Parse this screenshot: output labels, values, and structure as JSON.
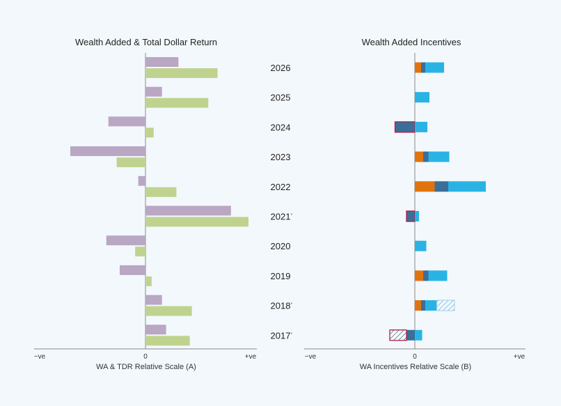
{
  "colors": {
    "background": "#f3f8fc",
    "wealth_added": "#b9a7c4",
    "total_dollar_return": "#bfd38f",
    "incentive_orange": "#e0730d",
    "incentive_dark_blue": "#3a6f9a",
    "incentive_light_blue": "#29b3e4",
    "deferred_hatch": "#6fb7df",
    "negative_outline": "#b01e44"
  },
  "chart_data": [
    {
      "type": "bar",
      "orientation": "horizontal",
      "title": "Wealth Added & Total Dollar Return",
      "xlabel": "WA & TDR Relative Scale (A)",
      "x_tick_labels": [
        "−ve",
        "0",
        "+ve"
      ],
      "xlim": [
        -1.08,
        1.0
      ],
      "categories": [
        "2026",
        "2025",
        "2024",
        "2023",
        "2022",
        "2021",
        "2020",
        "2019",
        "2018",
        "2017"
      ],
      "series": [
        {
          "key": "wealth_added",
          "values": [
            0.32,
            0.16,
            -0.36,
            -0.73,
            -0.07,
            0.83,
            -0.38,
            -0.25,
            0.16,
            0.2
          ]
        },
        {
          "key": "total_dollar_return",
          "values": [
            0.7,
            0.61,
            0.08,
            -0.28,
            0.3,
            1.0,
            -0.1,
            0.06,
            0.45,
            0.43
          ]
        }
      ]
    },
    {
      "type": "bar",
      "orientation": "horizontal",
      "stacked": true,
      "title": "Wealth Added Incentives",
      "xlabel": "WA Incentives Relative Scale (B)",
      "x_tick_labels": [
        "−ve",
        "0",
        "+ve"
      ],
      "xlim": [
        -1.0,
        1.0
      ],
      "categories": [
        "2026",
        "2025",
        "2024",
        "2023",
        "2022",
        "2021",
        "2020",
        "2019",
        "2018",
        "2017"
      ],
      "year_markers": [
        "",
        "",
        "",
        "",
        "",
        "'",
        "",
        "",
        "'",
        "'"
      ],
      "segments": [
        [
          {
            "c": "incentive_orange",
            "v": 0.06
          },
          {
            "c": "incentive_dark_blue",
            "v": 0.04
          },
          {
            "c": "incentive_light_blue",
            "v": 0.18
          }
        ],
        [
          {
            "c": "incentive_light_blue",
            "v": 0.14
          }
        ],
        [
          {
            "c": "incentive_dark_blue",
            "v": -0.19,
            "outline": true
          },
          {
            "c": "incentive_light_blue",
            "v": 0.12
          }
        ],
        [
          {
            "c": "incentive_orange",
            "v": 0.08
          },
          {
            "c": "incentive_dark_blue",
            "v": 0.05
          },
          {
            "c": "incentive_light_blue",
            "v": 0.2
          }
        ],
        [
          {
            "c": "incentive_orange",
            "v": 0.19
          },
          {
            "c": "incentive_dark_blue",
            "v": 0.13
          },
          {
            "c": "incentive_light_blue",
            "v": 0.36
          }
        ],
        [
          {
            "c": "incentive_dark_blue",
            "v": -0.08,
            "outline": true
          },
          {
            "c": "incentive_light_blue",
            "v": 0.04
          }
        ],
        [
          {
            "c": "incentive_light_blue",
            "v": 0.11
          }
        ],
        [
          {
            "c": "incentive_orange",
            "v": 0.08
          },
          {
            "c": "incentive_dark_blue",
            "v": 0.05
          },
          {
            "c": "incentive_light_blue",
            "v": 0.18
          }
        ],
        [
          {
            "c": "incentive_orange",
            "v": 0.06
          },
          {
            "c": "incentive_dark_blue",
            "v": 0.04
          },
          {
            "c": "incentive_light_blue",
            "v": 0.11
          },
          {
            "c": "deferred_hatch",
            "v": 0.17,
            "hatch": true
          }
        ],
        [
          {
            "c": "incentive_dark_blue",
            "v": -0.08
          },
          {
            "c": "deferred_hatch",
            "v": -0.16,
            "hatch": true,
            "outline": true
          },
          {
            "c": "incentive_light_blue",
            "v": 0.07
          }
        ]
      ]
    }
  ]
}
